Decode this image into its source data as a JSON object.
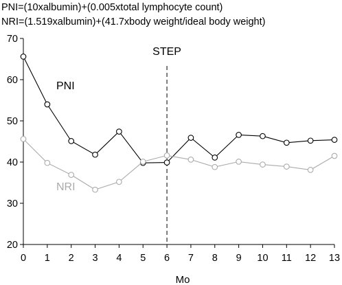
{
  "chart_data": {
    "type": "line",
    "formulas": [
      "PNI=(10xalbumin)+(0.005xtotal lymphocyte count)",
      "NRI=(1.519xalbumin)+(41.7xbody weight/ideal body weight)"
    ],
    "xlabel": "Mo",
    "ylabel": "",
    "x": [
      0,
      1,
      2,
      3,
      4,
      5,
      6,
      7,
      8,
      9,
      10,
      11,
      12,
      13
    ],
    "xlim": [
      0,
      13
    ],
    "ylim": [
      20,
      70
    ],
    "xticks": [
      0,
      1,
      2,
      3,
      4,
      5,
      6,
      7,
      8,
      9,
      10,
      11,
      12,
      13
    ],
    "yticks": [
      20,
      30,
      40,
      50,
      60,
      70
    ],
    "grid": false,
    "series": [
      {
        "name": "PNI",
        "color": "#000000",
        "values": [
          65.6,
          54.0,
          45.1,
          41.8,
          47.4,
          39.8,
          39.9,
          45.9,
          41.1,
          46.6,
          46.3,
          44.7,
          45.2,
          45.4
        ]
      },
      {
        "name": "NRI",
        "color": "#aaaaaa",
        "values": [
          45.6,
          39.8,
          36.9,
          33.3,
          35.2,
          40.1,
          41.6,
          40.6,
          38.8,
          40.1,
          39.4,
          38.9,
          38.1,
          41.5
        ]
      }
    ],
    "annotations": [
      {
        "text": "STEP",
        "x": 6,
        "style": "dashed-vertical-line"
      }
    ]
  }
}
